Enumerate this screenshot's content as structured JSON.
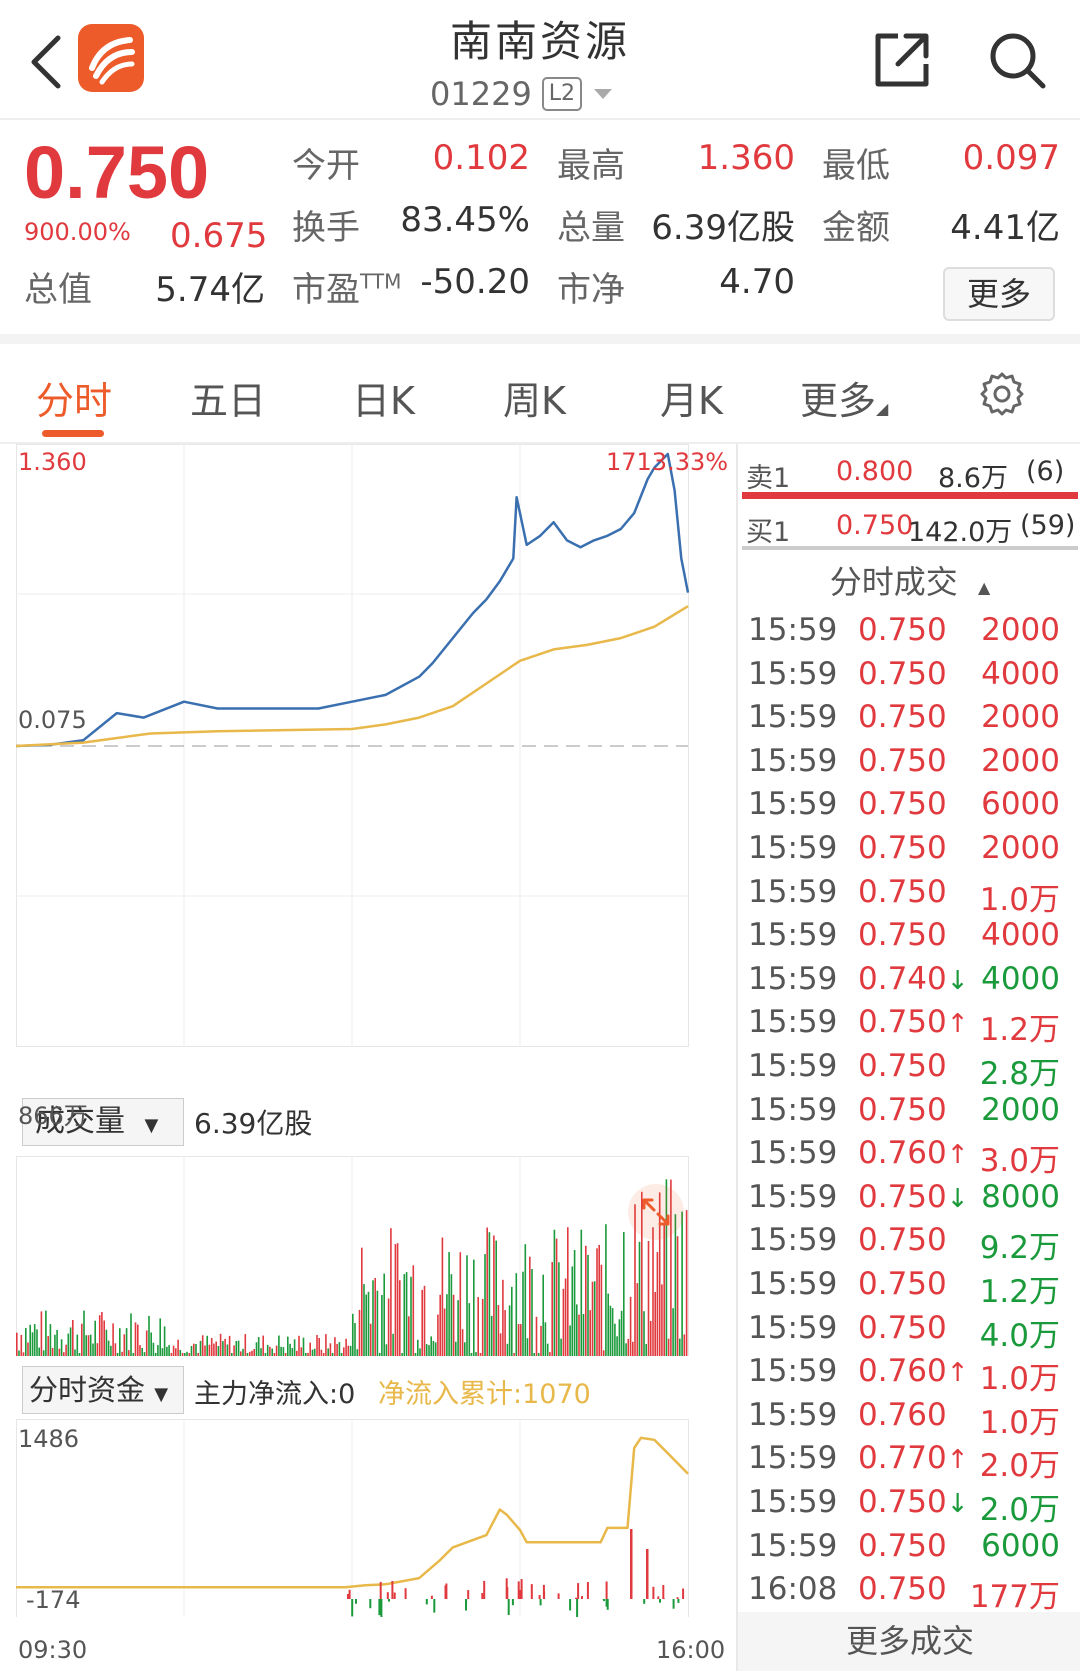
{
  "header": {
    "title": "南南资源",
    "code": "01229",
    "level_badge": "L2"
  },
  "quote": {
    "price": "0.750",
    "change_pct": "900.00%",
    "change": "0.675",
    "open_label": "今开",
    "open": "0.102",
    "high_label": "最高",
    "high": "1.360",
    "low_label": "最低",
    "low": "0.097",
    "turnover_label": "换手",
    "turnover": "83.45%",
    "volume_label": "总量",
    "volume": "6.39亿股",
    "amount_label": "金额",
    "amount": "4.41亿",
    "mktcap_label": "总值",
    "mktcap": "5.74亿",
    "pe_label": "市盈",
    "pe_sup": "TTM",
    "pe": "-50.20",
    "pb_label": "市净",
    "pb": "4.70",
    "more_label": "更多"
  },
  "tabs": [
    {
      "label": "分时",
      "active": true
    },
    {
      "label": "五日",
      "active": false
    },
    {
      "label": "日K",
      "active": false
    },
    {
      "label": "周K",
      "active": false
    },
    {
      "label": "月K",
      "active": false
    },
    {
      "label": "更多",
      "active": false
    }
  ],
  "chart_labels": {
    "price_high": "1.360",
    "price_high_pct": "1713.33%",
    "prev_close": "0.075",
    "volume_selector": "成交量",
    "volume_total": "6.39亿股",
    "volume_max": "866万",
    "fund_selector": "分时资金",
    "main_net_inflow": "主力净流入:0",
    "cum_net_inflow": "净流入累计:1070",
    "fund_max": "1486",
    "fund_min": "-174",
    "time_start": "09:30",
    "time_end": "16:00"
  },
  "chart_data": {
    "type": "line",
    "x_range": [
      "09:30",
      "16:00"
    ],
    "ylim": [
      0.075,
      1.36
    ],
    "prev_close": 0.075,
    "series": [
      {
        "color": "#3a6fb0",
        "x": [
          0,
          0.05,
          0.1,
          0.15,
          0.19,
          0.25,
          0.3,
          0.35,
          0.4,
          0.45,
          0.5,
          0.55,
          0.6,
          0.62,
          0.65,
          0.68,
          0.7,
          0.72,
          0.74,
          0.745,
          0.76,
          0.78,
          0.8,
          0.82,
          0.84,
          0.86,
          0.88,
          0.9,
          0.92,
          0.94,
          0.95,
          0.96,
          0.97,
          0.98,
          0.99,
          1.0
        ],
        "y": [
          0.075,
          0.08,
          0.1,
          0.22,
          0.2,
          0.27,
          0.24,
          0.24,
          0.24,
          0.24,
          0.27,
          0.3,
          0.38,
          0.44,
          0.55,
          0.66,
          0.72,
          0.8,
          0.9,
          1.17,
          0.96,
          1.0,
          1.06,
          0.98,
          0.95,
          0.98,
          1.0,
          1.03,
          1.1,
          1.25,
          1.3,
          1.33,
          1.36,
          1.2,
          0.9,
          0.75
        ]
      },
      {
        "color": "#e8b84a",
        "x": [
          0,
          0.1,
          0.2,
          0.3,
          0.4,
          0.5,
          0.55,
          0.6,
          0.65,
          0.7,
          0.75,
          0.8,
          0.85,
          0.9,
          0.95,
          1.0
        ],
        "y": [
          0.075,
          0.09,
          0.13,
          0.14,
          0.145,
          0.15,
          0.17,
          0.2,
          0.25,
          0.35,
          0.45,
          0.5,
          0.52,
          0.55,
          0.6,
          0.69
        ]
      }
    ],
    "fund_series": {
      "color": "#e8b84a",
      "ylim": [
        -174,
        1486
      ],
      "x": [
        0,
        0.2,
        0.4,
        0.49,
        0.52,
        0.55,
        0.6,
        0.63,
        0.65,
        0.7,
        0.72,
        0.73,
        0.75,
        0.76,
        0.87,
        0.88,
        0.91,
        0.92,
        0.93,
        0.95,
        0.97,
        1.0
      ],
      "y": [
        -60,
        -60,
        -60,
        -60,
        -40,
        -30,
        30,
        200,
        330,
        450,
        700,
        650,
        500,
        380,
        380,
        520,
        520,
        1300,
        1400,
        1380,
        1250,
        1050
      ]
    }
  },
  "orderbook": {
    "ask_label": "卖1",
    "ask_price": "0.800",
    "ask_vol": "8.6万",
    "ask_count": "(6)",
    "bid_label": "买1",
    "bid_price": "0.750",
    "bid_vol": "142.0万",
    "bid_count": "(59)"
  },
  "ticks_header": "分时成交",
  "ticks": [
    {
      "time": "15:59",
      "price": "0.750",
      "arrow": "",
      "vol": "2000",
      "color": "#e0393e"
    },
    {
      "time": "15:59",
      "price": "0.750",
      "arrow": "",
      "vol": "4000",
      "color": "#e0393e"
    },
    {
      "time": "15:59",
      "price": "0.750",
      "arrow": "",
      "vol": "2000",
      "color": "#e0393e"
    },
    {
      "time": "15:59",
      "price": "0.750",
      "arrow": "",
      "vol": "2000",
      "color": "#e0393e"
    },
    {
      "time": "15:59",
      "price": "0.750",
      "arrow": "",
      "vol": "6000",
      "color": "#e0393e"
    },
    {
      "time": "15:59",
      "price": "0.750",
      "arrow": "",
      "vol": "2000",
      "color": "#e0393e"
    },
    {
      "time": "15:59",
      "price": "0.750",
      "arrow": "",
      "vol": "1.0万",
      "color": "#e0393e"
    },
    {
      "time": "15:59",
      "price": "0.750",
      "arrow": "",
      "vol": "4000",
      "color": "#e0393e"
    },
    {
      "time": "15:59",
      "price": "0.740",
      "arrow": "↓",
      "vol": "4000",
      "color": "#1a9a3a"
    },
    {
      "time": "15:59",
      "price": "0.750",
      "arrow": "↑",
      "vol": "1.2万",
      "color": "#e0393e"
    },
    {
      "time": "15:59",
      "price": "0.750",
      "arrow": "",
      "vol": "2.8万",
      "color": "#1a9a3a"
    },
    {
      "time": "15:59",
      "price": "0.750",
      "arrow": "",
      "vol": "2000",
      "color": "#1a9a3a"
    },
    {
      "time": "15:59",
      "price": "0.760",
      "arrow": "↑",
      "vol": "3.0万",
      "color": "#e0393e"
    },
    {
      "time": "15:59",
      "price": "0.750",
      "arrow": "↓",
      "vol": "8000",
      "color": "#1a9a3a"
    },
    {
      "time": "15:59",
      "price": "0.750",
      "arrow": "",
      "vol": "9.2万",
      "color": "#1a9a3a"
    },
    {
      "time": "15:59",
      "price": "0.750",
      "arrow": "",
      "vol": "1.2万",
      "color": "#1a9a3a"
    },
    {
      "time": "15:59",
      "price": "0.750",
      "arrow": "",
      "vol": "4.0万",
      "color": "#1a9a3a"
    },
    {
      "time": "15:59",
      "price": "0.760",
      "arrow": "↑",
      "vol": "1.0万",
      "color": "#e0393e"
    },
    {
      "time": "15:59",
      "price": "0.760",
      "arrow": "",
      "vol": "1.0万",
      "color": "#e0393e"
    },
    {
      "time": "15:59",
      "price": "0.770",
      "arrow": "↑",
      "vol": "2.0万",
      "color": "#e0393e"
    },
    {
      "time": "15:59",
      "price": "0.750",
      "arrow": "↓",
      "vol": "2.0万",
      "color": "#1a9a3a"
    },
    {
      "time": "15:59",
      "price": "0.750",
      "arrow": "",
      "vol": "6000",
      "color": "#1a9a3a"
    },
    {
      "time": "16:08",
      "price": "0.750",
      "arrow": "",
      "vol": "177万",
      "color": "#e0393e"
    }
  ],
  "more_trades_label": "更多成交",
  "colors": {
    "up": "#e0393e",
    "down": "#1a9a3a",
    "accent": "#ee5b2a",
    "price_line": "#3a6fb0",
    "avg_line": "#e8b84a"
  }
}
